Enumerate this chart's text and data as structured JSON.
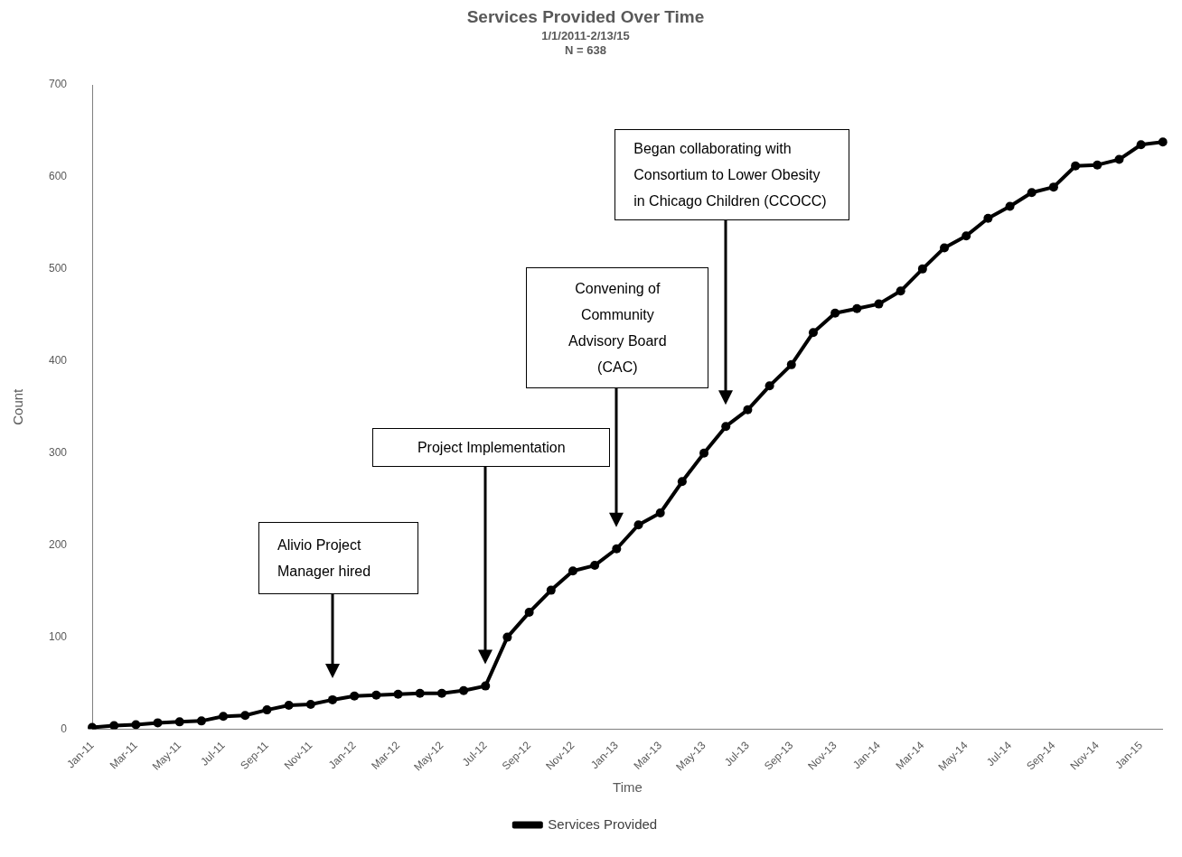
{
  "chart_data": {
    "type": "line",
    "title": "Services Provided Over Time",
    "subtitle": "1/1/2011-2/13/15\nN = 638",
    "xlabel": "Time",
    "ylabel": "Count",
    "categories": [
      "Jan-11",
      null,
      "Mar-11",
      null,
      "May-11",
      null,
      "Jul-11",
      null,
      "Sep-11",
      null,
      "Nov-11",
      null,
      "Jan-12",
      null,
      "Mar-12",
      null,
      "May-12",
      null,
      "Jul-12",
      null,
      "Sep-12",
      null,
      "Nov-12",
      null,
      "Jan-13",
      null,
      "Mar-13",
      null,
      "May-13",
      null,
      "Jul-13",
      null,
      "Sep-13",
      null,
      "Nov-13",
      null,
      "Jan-14",
      null,
      "Mar-14",
      null,
      "May-14",
      null,
      "Jul-14",
      null,
      "Sep-14",
      null,
      "Nov-14",
      null,
      "Jan-15",
      null
    ],
    "series": [
      {
        "name": "Services Provided",
        "color": "#000000",
        "values": [
          2,
          4,
          5,
          7,
          8,
          9,
          14,
          15,
          21,
          26,
          27,
          32,
          36,
          37,
          38,
          39,
          39,
          42,
          47,
          100,
          127,
          151,
          172,
          178,
          196,
          222,
          235,
          269,
          300,
          329,
          347,
          373,
          396,
          431,
          452,
          457,
          462,
          476,
          500,
          523,
          536,
          555,
          568,
          583,
          589,
          612,
          613,
          619,
          635,
          638
        ]
      }
    ],
    "ylim": [
      0,
      700
    ],
    "yticks": [
      0,
      100,
      200,
      300,
      400,
      500,
      600,
      700
    ],
    "grid": false,
    "legend": "bottom",
    "marker": "circle",
    "line_style": "solid",
    "annotations": [
      "Alivio Project Manager hired",
      "Project Implementation",
      "Convening of Community Advisory Board (CAC)",
      "Began collaborating with Consortium to Lower Obesity in Chicago Children (CCOCC)"
    ]
  }
}
